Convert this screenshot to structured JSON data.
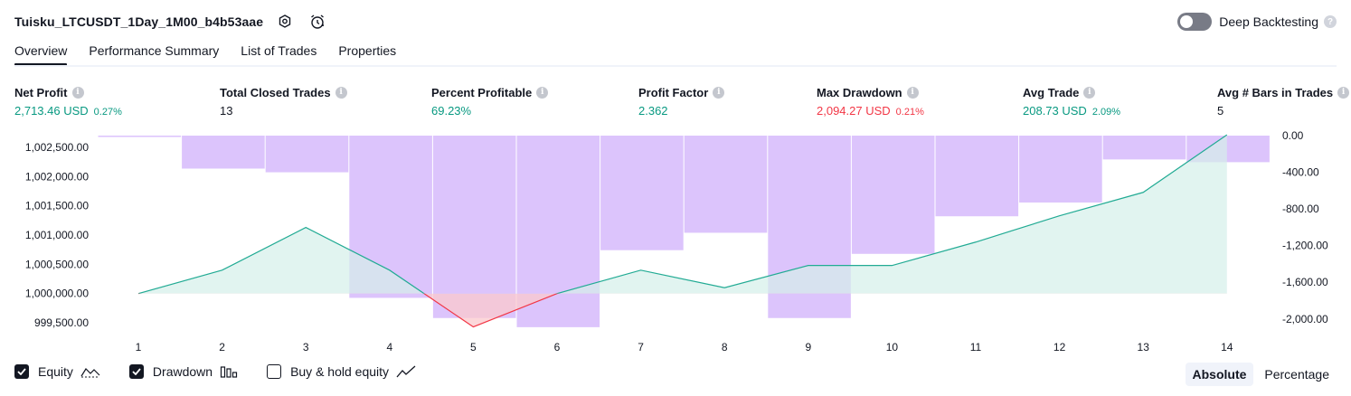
{
  "strategy_title": "Tuisku_LTCUSDT_1Day_1M00_b4b53aae",
  "icons": {
    "settings": "gear-icon",
    "alert": "alarm-clock-icon",
    "help": "question-icon",
    "info": "info-icon"
  },
  "deep_backtesting": {
    "label": "Deep Backtesting",
    "enabled": false
  },
  "tabs": [
    "Overview",
    "Performance Summary",
    "List of Trades",
    "Properties"
  ],
  "active_tab": "Overview",
  "stats": [
    {
      "label": "Net Profit",
      "value": "2,713.46 USD",
      "pct": "0.27%",
      "color": "#089981"
    },
    {
      "label": "Total Closed Trades",
      "value": "13",
      "pct": "",
      "color": "#131722"
    },
    {
      "label": "Percent Profitable",
      "value": "69.23%",
      "pct": "",
      "color": "#089981"
    },
    {
      "label": "Profit Factor",
      "value": "2.362",
      "pct": "",
      "color": "#089981"
    },
    {
      "label": "Max Drawdown",
      "value": "2,094.27 USD",
      "pct": "0.21%",
      "color": "#f23645"
    },
    {
      "label": "Avg Trade",
      "value": "208.73 USD",
      "pct": "2.09%",
      "color": "#089981"
    },
    {
      "label": "Avg # Bars in Trades",
      "value": "5",
      "pct": "",
      "color": "#131722"
    }
  ],
  "legend": {
    "equity": "Equity",
    "drawdown": "Drawdown",
    "buy_hold": "Buy & hold equity",
    "equity_checked": true,
    "drawdown_checked": true,
    "buy_hold_checked": false
  },
  "mode": {
    "absolute": "Absolute",
    "percentage": "Percentage",
    "selected": "Absolute"
  },
  "colors": {
    "equity_line": "#22ab94",
    "equity_fill": "#d4efe9",
    "loss": "#f23645",
    "drawdown": "#c9a4fb"
  },
  "chart_data": {
    "type": "line",
    "x": [
      1,
      2,
      3,
      4,
      5,
      6,
      7,
      8,
      9,
      10,
      11,
      12,
      13,
      14
    ],
    "y_left_ticks": [
      "1,002,500.00",
      "1,002,000.00",
      "1,001,500.00",
      "1,001,000.00",
      "1,000,500.00",
      "1,000,000.00",
      "999,500.00"
    ],
    "y_right_ticks": [
      "0.00",
      "-400.00",
      "-800.00",
      "-1,200.00",
      "-1,600.00",
      "-2,000.00"
    ],
    "ylim_left": [
      999300,
      1002700
    ],
    "ylim_right": [
      -2170,
      0
    ],
    "equity": [
      1000000,
      1000400,
      1001130,
      1000400,
      999430,
      1000000,
      1000400,
      1000100,
      1000480,
      1000480,
      1000880,
      1001330,
      1001730,
      1002713
    ],
    "drawdown": [
      -15,
      -360,
      -400,
      -1770,
      -1990,
      -2090,
      -1250,
      -1060,
      -1990,
      -1290,
      -880,
      -730,
      -260,
      -290
    ],
    "series": [
      {
        "name": "Equity"
      },
      {
        "name": "Drawdown"
      }
    ]
  }
}
